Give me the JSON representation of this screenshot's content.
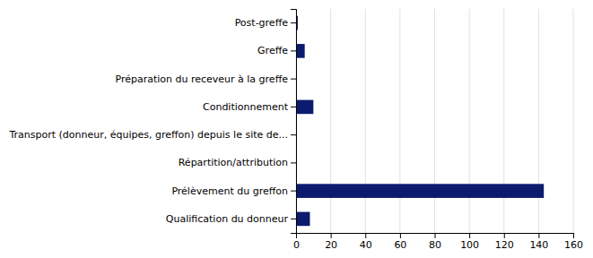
{
  "chart_data": {
    "type": "bar",
    "orientation": "horizontal",
    "categories": [
      "Qualification du donneur",
      "Prélèvement du greffon",
      "Répartition/attribution",
      "Transport (donneur, équipes, greffon) depuis le site de...",
      "Conditionnement",
      "Préparation du receveur à la greffe",
      "Greffe",
      "Post-greffe"
    ],
    "values": [
      8,
      143,
      0,
      0,
      10,
      0,
      5,
      1
    ],
    "color": "#0D1B6E",
    "xlim": [
      0,
      160
    ],
    "xticks": [
      0,
      20,
      40,
      60,
      80,
      100,
      120,
      140,
      160
    ],
    "grid": true
  }
}
